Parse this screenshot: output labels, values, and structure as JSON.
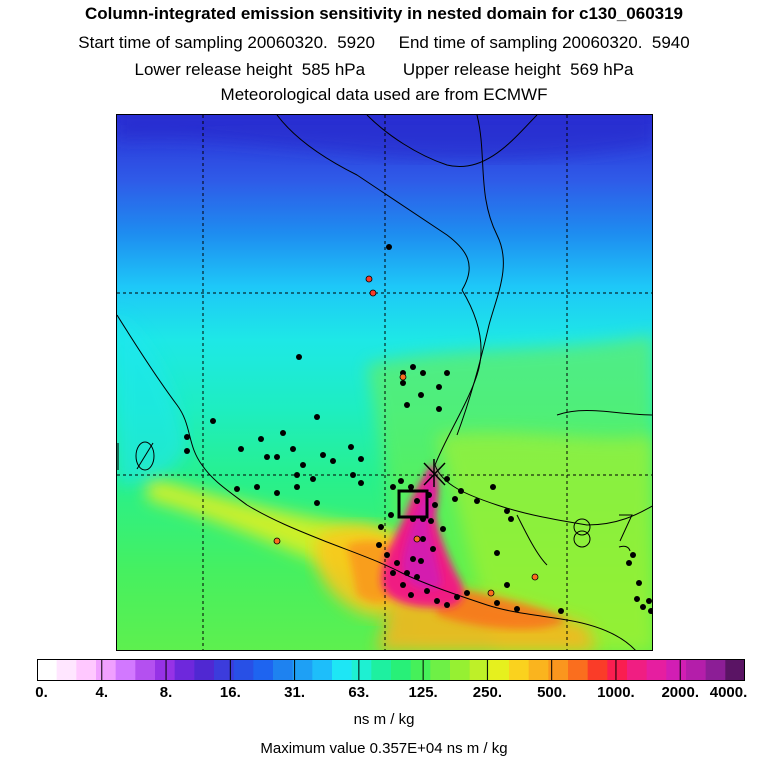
{
  "header": {
    "title": "Column-integrated emission sensitivity in nested domain for c130_060319",
    "sampling_line": "Start time of sampling 20060320.  5920     End time of sampling 20060320.  5940",
    "release_line": "Lower release height  585 hPa        Upper release height  569 hPa",
    "met_line": "Meteorological data used are from ECMWF"
  },
  "colorbar": {
    "tick_labels": [
      "0.",
      "4.",
      "8.",
      "16.",
      "31.",
      "63.",
      "125.",
      "250.",
      "500.",
      "1000.",
      "2000.",
      "4000."
    ],
    "colors": [
      "#ffffff",
      "#ffe6ff",
      "#ffc8ff",
      "#f0a0ff",
      "#d278ff",
      "#b450f0",
      "#9632e6",
      "#6e28dc",
      "#5028d2",
      "#3c3cdc",
      "#2850e6",
      "#1e64f0",
      "#1e82f0",
      "#1ea0f5",
      "#1ebefa",
      "#1ee6f5",
      "#1ef0d2",
      "#1ef0a0",
      "#28f078",
      "#46f05a",
      "#6ef046",
      "#96f032",
      "#bef028",
      "#e6f01e",
      "#fad21e",
      "#fab41e",
      "#fa961e",
      "#fa6e1e",
      "#fa3c28",
      "#fa1e50",
      "#f01e82",
      "#e61ea0",
      "#d21eb4",
      "#b41eaa",
      "#8c1e96",
      "#5a1464"
    ],
    "units": "ns m / kg"
  },
  "footer": {
    "max_value_text": "Maximum value  0.357E+04 ns m / kg"
  }
}
